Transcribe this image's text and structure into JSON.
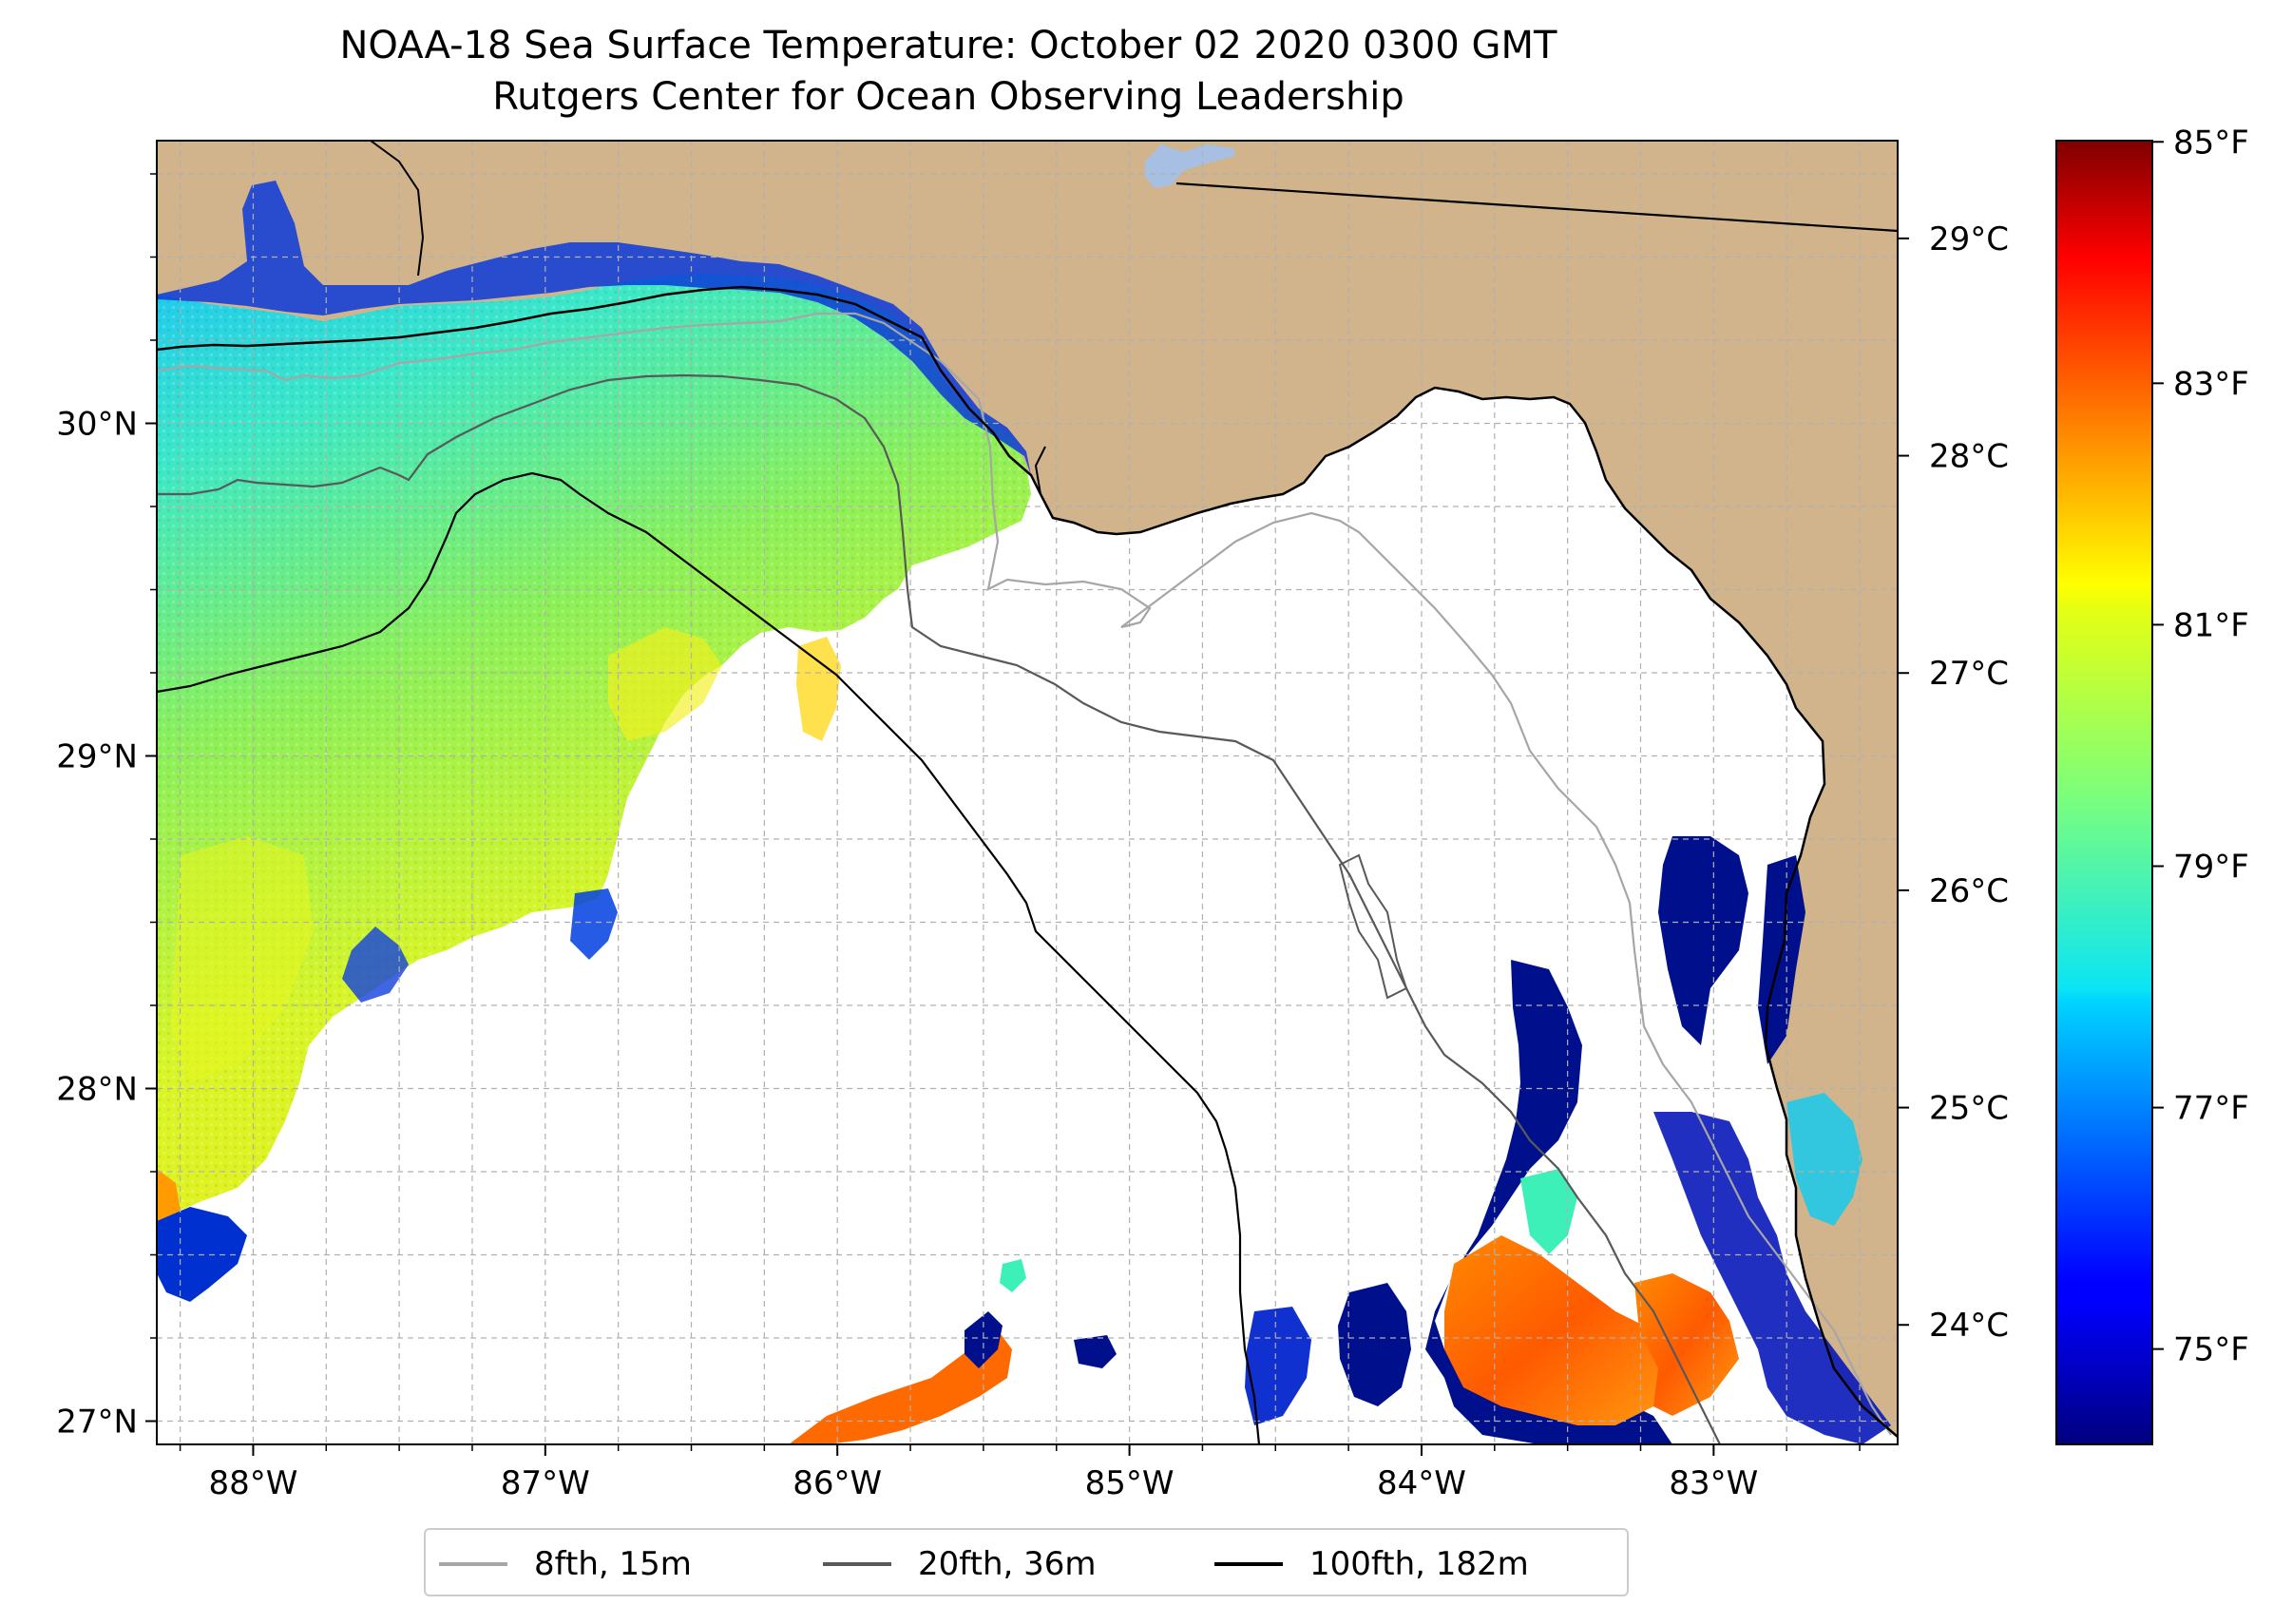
{
  "title": {
    "line1": "NOAA-18 Sea Surface Temperature: October 02 2020 0300 GMT",
    "line2": "Rutgers Center for Ocean Observing Leadership"
  },
  "map": {
    "extent": {
      "lon_min": -88.33,
      "lon_max": -82.37,
      "lat_min": 26.93,
      "lat_max": 30.85
    },
    "lon_ticks": [
      {
        "value": -88,
        "label": "88°W"
      },
      {
        "value": -87,
        "label": "87°W"
      },
      {
        "value": -86,
        "label": "86°W"
      },
      {
        "value": -85,
        "label": "85°W"
      },
      {
        "value": -84,
        "label": "84°W"
      },
      {
        "value": -83,
        "label": "83°W"
      }
    ],
    "lat_ticks": [
      {
        "value": 27,
        "label": "27°N"
      },
      {
        "value": 28,
        "label": "28°N"
      },
      {
        "value": 29,
        "label": "29°N"
      },
      {
        "value": 30,
        "label": "30°N"
      }
    ],
    "grid_step_deg": 0.25,
    "colors": {
      "land": "#d2b48c",
      "lake": "#a6bfe2",
      "ocean_no_data": "#ffffff",
      "grid": "#b0b0b0"
    }
  },
  "legend": {
    "items": [
      {
        "label": "8fth, 15m",
        "color": "#a6a6a6"
      },
      {
        "label": "20fth, 36m",
        "color": "#595959"
      },
      {
        "label": "100fth, 182m",
        "color": "#000000"
      }
    ]
  },
  "colorbar": {
    "colormap": "jet",
    "range_c": [
      23.45,
      29.45
    ],
    "celsius_ticks": [
      {
        "value": 24,
        "label": "24°C"
      },
      {
        "value": 25,
        "label": "25°C"
      },
      {
        "value": 26,
        "label": "26°C"
      },
      {
        "value": 27,
        "label": "27°C"
      },
      {
        "value": 28,
        "label": "28°C"
      },
      {
        "value": 29,
        "label": "29°C"
      }
    ],
    "fahrenheit_ticks": [
      {
        "value": 75,
        "label": "75°F"
      },
      {
        "value": 77,
        "label": "77°F"
      },
      {
        "value": 79,
        "label": "79°F"
      },
      {
        "value": 81,
        "label": "81°F"
      },
      {
        "value": 83,
        "label": "83°F"
      },
      {
        "value": 85,
        "label": "85°F"
      }
    ]
  }
}
